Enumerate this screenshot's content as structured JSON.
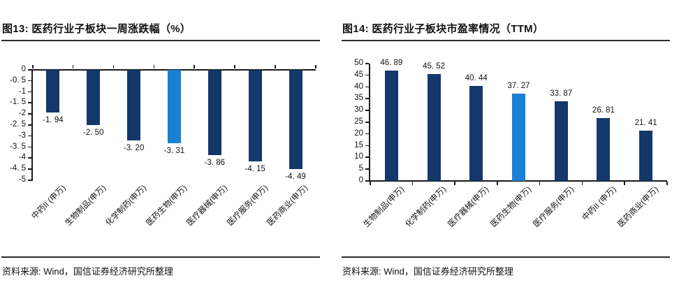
{
  "page": {
    "background": "#ffffff"
  },
  "chart_data": [
    {
      "type": "bar",
      "title": "图13: 医药行业子板块一周涨跌幅（%）",
      "source": "资料来源: Wind，国信证券经济研究所整理",
      "categories": [
        "中药II (申万)",
        "生物制品(申万)",
        "化学制药(申万)",
        "医药生物(申万)",
        "医疗器械(申万)",
        "医疗服务(申万)",
        "医药商业(申万)"
      ],
      "values": [
        -1.94,
        -2.5,
        -3.2,
        -3.31,
        -3.86,
        -4.15,
        -4.49
      ],
      "value_labels": [
        "-1. 94",
        "-2. 50",
        "-3. 20",
        "-3. 31",
        "-3. 86",
        "-4. 15",
        "-4. 49"
      ],
      "ylim": [
        -5,
        0
      ],
      "ytick_values": [
        0,
        -0.5,
        -1,
        -1.5,
        -2,
        -2.5,
        -3,
        -3.5,
        -4,
        -4.5,
        -5
      ],
      "ytick_labels": [
        "0",
        "-0. 5",
        "-1",
        "-1. 5",
        "-2",
        "-2. 5",
        "-3",
        "-3. 5",
        "-4",
        "-4. 5",
        "-5"
      ],
      "highlight_index": 3,
      "bar_color": "#14386B",
      "highlight_color": "#1A80D4",
      "grid": false,
      "legend": null
    },
    {
      "type": "bar",
      "title": "图14: 医药行业子板块市盈率情况（TTM）",
      "source": "资料来源: Wind，国信证券经济研究所整理",
      "categories": [
        "生物制品(申万)",
        "化学制药(申万)",
        "医疗器械(申万)",
        "医药生物(申万)",
        "医疗服务(申万)",
        "中药II (申万)",
        "医药商业(申万)"
      ],
      "values": [
        46.89,
        45.52,
        40.44,
        37.27,
        33.87,
        26.81,
        21.41
      ],
      "value_labels": [
        "46. 89",
        "45. 52",
        "40. 44",
        "37. 27",
        "33. 87",
        "26. 81",
        "21. 41"
      ],
      "ylim": [
        0,
        50
      ],
      "ytick_values": [
        50,
        45,
        40,
        35,
        30,
        25,
        20,
        15,
        10,
        5,
        0
      ],
      "ytick_labels": [
        "50",
        "45",
        "40",
        "35",
        "30",
        "25",
        "20",
        "15",
        "10",
        "5",
        "0"
      ],
      "highlight_index": 3,
      "bar_color": "#14386B",
      "highlight_color": "#1A80D4",
      "grid": false,
      "legend": null
    }
  ]
}
